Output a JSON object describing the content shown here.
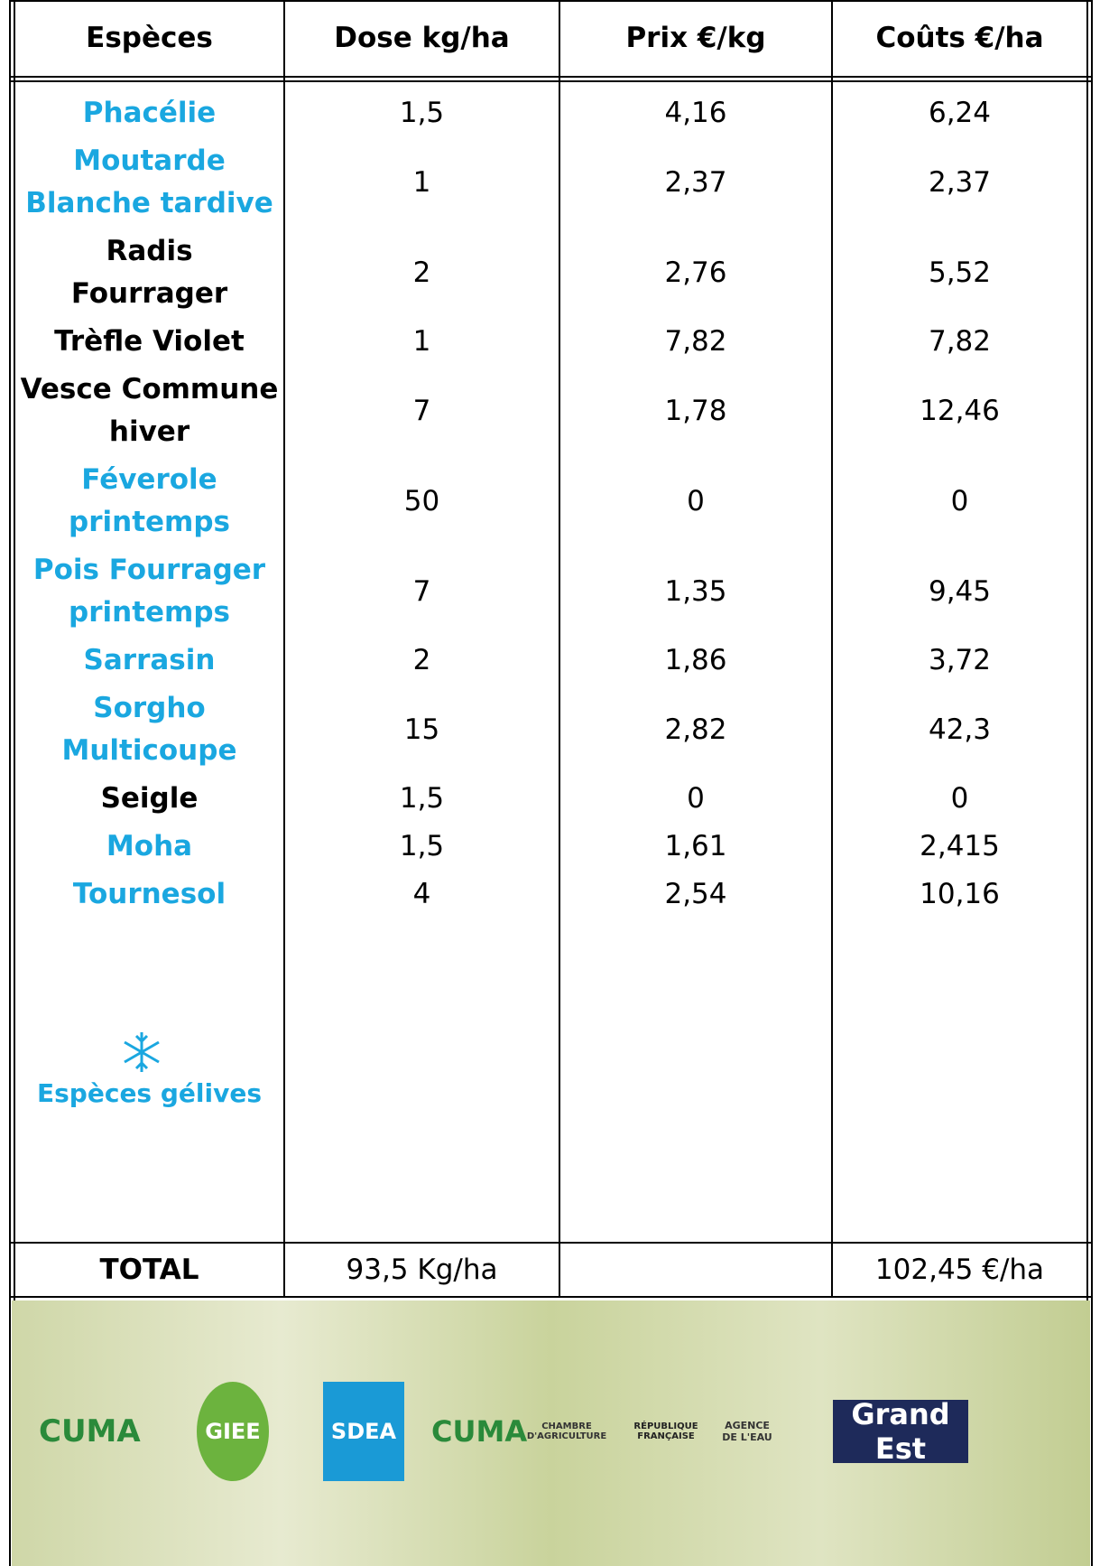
{
  "table": {
    "header": [
      "Espèces",
      "Dose kg/ha",
      "Prix €/kg",
      "Coûts €/ha"
    ],
    "rows": [
      {
        "species": [
          "Phacélie"
        ],
        "color": "#1aa7e0",
        "cells": [
          "1,5",
          "4,16",
          "6,24"
        ]
      },
      {
        "species": [
          "Moutarde",
          "Blanche tardive"
        ],
        "color": "#1aa7e0",
        "cells": [
          "1",
          "2,37",
          "2,37"
        ]
      },
      {
        "species": [
          "Radis",
          "Fourrager"
        ],
        "color": "#000000",
        "cells": [
          "2",
          "2,76",
          "5,52"
        ]
      },
      {
        "species": [
          "Trèfle Violet"
        ],
        "color": "#000000",
        "cells": [
          "1",
          "7,82",
          "7,82"
        ]
      },
      {
        "species": [
          "Vesce Commune",
          "hiver"
        ],
        "color": "#000000",
        "cells": [
          "7",
          "1,78",
          "12,46"
        ]
      },
      {
        "species": [
          "Féverole",
          "printemps"
        ],
        "color": "#1aa7e0",
        "cells": [
          "50",
          "0",
          "0"
        ]
      },
      {
        "species": [
          "Pois Fourrager",
          "printemps"
        ],
        "color": "#1aa7e0",
        "cells": [
          "7",
          "1,35",
          "9,45"
        ]
      },
      {
        "species": [
          "Sarrasin"
        ],
        "color": "#1aa7e0",
        "cells": [
          "2",
          "1,86",
          "3,72"
        ]
      },
      {
        "species": [
          "Sorgho",
          "Multicoupe"
        ],
        "color": "#1aa7e0",
        "cells": [
          "15",
          "2,82",
          "42,3"
        ]
      },
      {
        "species": [
          "Seigle"
        ],
        "color": "#000000",
        "cells": [
          "1,5",
          "0",
          "0"
        ]
      },
      {
        "species": [
          "Moha"
        ],
        "color": "#1aa7e0",
        "cells": [
          "1,5",
          "1,61",
          "2,415"
        ]
      },
      {
        "species": [
          "Tournesol"
        ],
        "color": "#1aa7e0",
        "cells": [
          "4",
          "2,54",
          "10,16"
        ]
      }
    ],
    "legend": "Espèces gélives",
    "total": [
      "TOTAL",
      "93,5 Kg/ha",
      "",
      "102,45 €/ha"
    ]
  },
  "footer": {
    "logos": [
      "CUMA",
      "GIEE",
      "SDEA",
      "CUMA",
      "CHAMBRE D'AGRICULTURE",
      "RÉPUBLIQUE FRANÇAISE",
      "AGENCE DE L'EAU",
      "Grand Est"
    ]
  }
}
